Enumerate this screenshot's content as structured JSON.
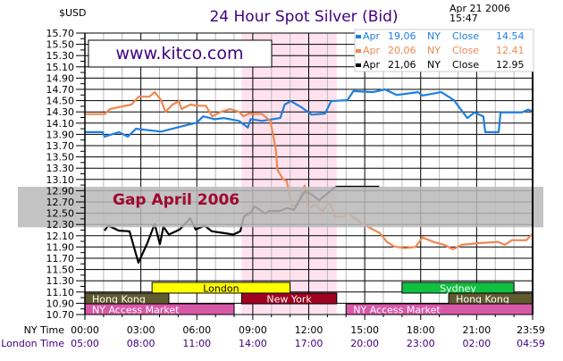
{
  "header": {
    "currency_label": "$USD",
    "title": "24 Hour Spot Silver (Bid)",
    "date": "Apr 21 2006",
    "time": "15:47",
    "watermark": "www.kitco.com",
    "annotation": "Gap April 2006"
  },
  "colors": {
    "title": "#400080",
    "apr19": "#1f7fe0",
    "apr20": "#f08850",
    "apr21": "#000000",
    "ny_band": "#ffe2ee",
    "gap_band": "#b8b8b8",
    "gap_text": "#a00830",
    "london": "#ffff00",
    "hong_kong": "#605a30",
    "new_york": "#a00020",
    "ny_access": "#d858a8",
    "sydney": "#10c040",
    "london_time": "#400080"
  },
  "chart_data": {
    "type": "line",
    "title": "24 Hour Spot Silver (Bid)",
    "ylabel": "$USD",
    "ylim": [
      10.7,
      15.7
    ],
    "xlim_hours": [
      0,
      24
    ],
    "grid": true,
    "legend_placement": "top-right",
    "y_ticks": [
      "15.70",
      "15.50",
      "15.30",
      "15.10",
      "14.90",
      "14.70",
      "14.50",
      "14.30",
      "14.10",
      "13.90",
      "13.70",
      "13.50",
      "13.30",
      "13.10",
      "12.90",
      "12.70",
      "12.50",
      "12.30",
      "12.10",
      "11.90",
      "11.70",
      "11.50",
      "11.30",
      "11.10",
      "10.90",
      "10.70"
    ],
    "x_ticks": {
      "row_labels": [
        "NY Time",
        "London Time"
      ],
      "ny": [
        "00:00",
        "03:00",
        "06:00",
        "09:00",
        "12:00",
        "15:00",
        "18:00",
        "21:00",
        "23:59"
      ],
      "london": [
        "05:00",
        "08:00",
        "11:00",
        "14:00",
        "17:00",
        "20:00",
        "23:00",
        "02:00",
        "04:59"
      ]
    },
    "legend": [
      {
        "label": "Apr",
        "date": "19,06",
        "market": "NY",
        "kind": "Close",
        "value": "14.54",
        "color_key": "apr19"
      },
      {
        "label": "Apr",
        "date": "20,06",
        "market": "NY",
        "kind": "Close",
        "value": "12.41",
        "color_key": "apr20"
      },
      {
        "label": "Apr",
        "date": "21,06",
        "market": "NY",
        "kind": "Close",
        "value": "12.95",
        "color_key": "apr21"
      }
    ],
    "series": [
      {
        "name": "Apr 19,06",
        "color_key": "apr19",
        "points": [
          [
            0,
            13.94
          ],
          [
            0.96,
            13.94
          ],
          [
            1.06,
            13.86
          ],
          [
            1.82,
            13.94
          ],
          [
            2.3,
            13.86
          ],
          [
            2.74,
            14.0
          ],
          [
            4.08,
            13.95
          ],
          [
            5.04,
            14.03
          ],
          [
            6.0,
            14.11
          ],
          [
            6.34,
            14.22
          ],
          [
            6.96,
            14.17
          ],
          [
            7.44,
            14.19
          ],
          [
            8.26,
            14.14
          ],
          [
            8.74,
            14.02
          ],
          [
            8.88,
            14.17
          ],
          [
            9.5,
            14.14
          ],
          [
            10.47,
            14.19
          ],
          [
            10.71,
            14.43
          ],
          [
            11.04,
            14.49
          ],
          [
            11.62,
            14.38
          ],
          [
            12.15,
            14.25
          ],
          [
            12.87,
            14.27
          ],
          [
            13.2,
            14.49
          ],
          [
            14.07,
            14.51
          ],
          [
            14.4,
            14.67
          ],
          [
            15.46,
            14.65
          ],
          [
            16.08,
            14.7
          ],
          [
            16.71,
            14.6
          ],
          [
            17.86,
            14.65
          ],
          [
            18.1,
            14.59
          ],
          [
            19.1,
            14.65
          ],
          [
            19.78,
            14.51
          ],
          [
            20.5,
            14.19
          ],
          [
            20.88,
            14.29
          ],
          [
            21.36,
            14.22
          ],
          [
            21.46,
            13.94
          ],
          [
            22.18,
            13.94
          ],
          [
            22.28,
            14.29
          ],
          [
            23.43,
            14.29
          ],
          [
            23.76,
            14.34
          ],
          [
            23.98,
            14.31
          ]
        ]
      },
      {
        "name": "Apr 20,06",
        "color_key": "apr20",
        "points": [
          [
            0,
            14.26
          ],
          [
            1.06,
            14.26
          ],
          [
            1.34,
            14.35
          ],
          [
            2.5,
            14.43
          ],
          [
            2.88,
            14.57
          ],
          [
            3.46,
            14.57
          ],
          [
            3.74,
            14.65
          ],
          [
            4.08,
            14.51
          ],
          [
            4.32,
            14.3
          ],
          [
            4.7,
            14.43
          ],
          [
            5.04,
            14.49
          ],
          [
            5.18,
            14.35
          ],
          [
            5.66,
            14.43
          ],
          [
            6.0,
            14.41
          ],
          [
            6.48,
            14.41
          ],
          [
            6.82,
            14.22
          ],
          [
            7.3,
            14.3
          ],
          [
            7.78,
            14.35
          ],
          [
            8.26,
            14.3
          ],
          [
            8.5,
            14.22
          ],
          [
            8.79,
            14.27
          ],
          [
            9.5,
            14.26
          ],
          [
            9.94,
            14.14
          ],
          [
            10.08,
            13.91
          ],
          [
            10.23,
            13.64
          ],
          [
            10.32,
            13.27
          ],
          [
            10.63,
            13.1
          ],
          [
            10.82,
            13.07
          ],
          [
            11.1,
            12.62
          ],
          [
            11.4,
            12.67
          ],
          [
            11.78,
            12.99
          ],
          [
            11.97,
            12.59
          ],
          [
            12.36,
            12.65
          ],
          [
            12.74,
            12.54
          ],
          [
            13.12,
            12.7
          ],
          [
            13.41,
            12.44
          ],
          [
            13.89,
            12.44
          ],
          [
            14.08,
            12.52
          ],
          [
            14.46,
            12.41
          ],
          [
            15.04,
            12.28
          ],
          [
            15.8,
            12.15
          ],
          [
            16.19,
            11.99
          ],
          [
            16.57,
            11.91
          ],
          [
            17.15,
            11.88
          ],
          [
            17.72,
            11.9
          ],
          [
            18.1,
            12.07
          ],
          [
            18.68,
            11.99
          ],
          [
            19.25,
            11.94
          ],
          [
            19.73,
            11.86
          ],
          [
            20.21,
            11.94
          ],
          [
            21.17,
            11.97
          ],
          [
            22.13,
            11.99
          ],
          [
            22.51,
            11.94
          ],
          [
            22.89,
            12.02
          ],
          [
            23.66,
            12.02
          ],
          [
            23.95,
            12.12
          ]
        ]
      },
      {
        "name": "Apr 21,06",
        "color_key": "apr21",
        "points": [
          [
            1.05,
            12.19
          ],
          [
            1.25,
            12.28
          ],
          [
            1.82,
            12.19
          ],
          [
            2.39,
            12.18
          ],
          [
            2.87,
            11.62
          ],
          [
            3.35,
            11.97
          ],
          [
            3.74,
            12.31
          ],
          [
            4.02,
            11.95
          ],
          [
            4.21,
            12.26
          ],
          [
            4.5,
            12.12
          ],
          [
            5.08,
            12.21
          ],
          [
            5.65,
            12.41
          ],
          [
            5.94,
            12.21
          ],
          [
            6.42,
            12.28
          ],
          [
            6.8,
            12.18
          ],
          [
            7.38,
            12.15
          ],
          [
            7.95,
            12.12
          ],
          [
            8.33,
            12.18
          ],
          [
            8.52,
            12.44
          ],
          [
            8.91,
            12.52
          ],
          [
            9.1,
            12.62
          ],
          [
            9.67,
            12.49
          ],
          [
            9.87,
            12.54
          ],
          [
            10.44,
            12.54
          ],
          [
            10.82,
            12.59
          ],
          [
            11.21,
            12.56
          ],
          [
            11.78,
            12.89
          ],
          [
            12.16,
            12.83
          ],
          [
            12.55,
            12.73
          ],
          [
            12.93,
            12.83
          ],
          [
            13.31,
            12.94
          ],
          [
            13.51,
            12.97
          ],
          [
            15.78,
            12.97
          ]
        ]
      }
    ],
    "ny_session_band_hours": [
      8.4,
      13.5
    ],
    "gap_band_price": [
      12.25,
      12.97
    ],
    "sessions": [
      {
        "label": "London",
        "start": 3.6,
        "end": 11.0,
        "row": 0,
        "color_key": "london",
        "text": "#000000"
      },
      {
        "label": "Sydney",
        "start": 17.0,
        "end": 23.0,
        "row": 0,
        "color_key": "sydney",
        "text": "#ffffff"
      },
      {
        "label": "Hong Kong",
        "start": 0,
        "end": 4.5,
        "row": 1,
        "color_key": "hong_kong",
        "text": "#ffffff"
      },
      {
        "label": "New York",
        "start": 8.4,
        "end": 13.5,
        "row": 1,
        "color_key": "new_york",
        "text": "#ffffff"
      },
      {
        "label": "Hong Kong",
        "start": 19.5,
        "end": 24,
        "row": 1,
        "color_key": "hong_kong",
        "text": "#ffffff"
      },
      {
        "label": "NY Access Market",
        "start": 0,
        "end": 8.0,
        "row": 2,
        "color_key": "ny_access",
        "text": "#ffffff"
      },
      {
        "label": "NY Access Market",
        "start": 14.0,
        "end": 24,
        "row": 2,
        "color_key": "ny_access",
        "text": "#ffffff"
      }
    ]
  }
}
